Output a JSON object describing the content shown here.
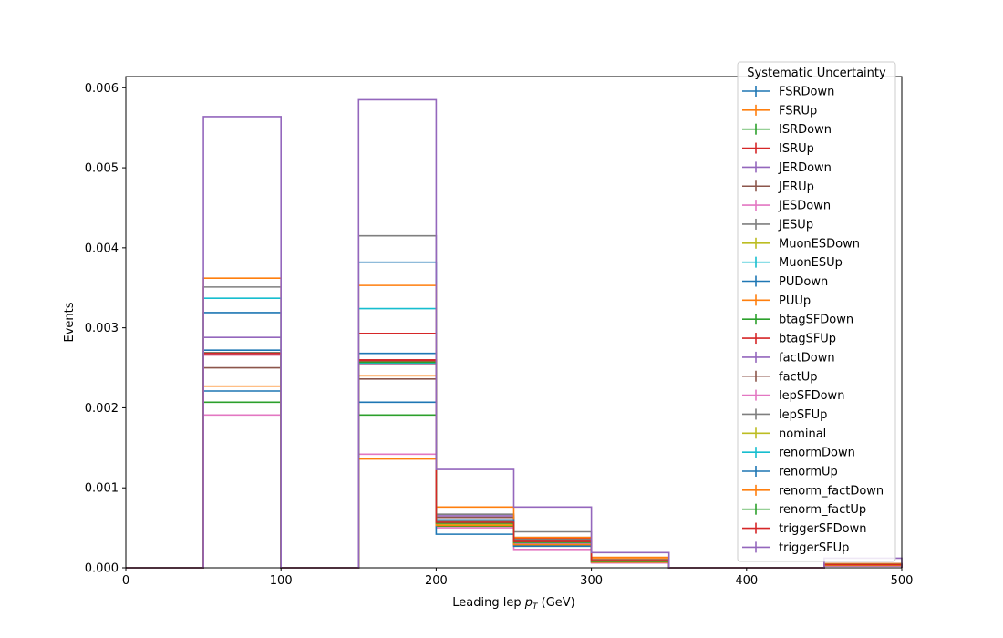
{
  "chart_data": {
    "type": "step-histogram",
    "title": "",
    "xlabel_prefix": "Leading lep ",
    "xlabel_var": "p",
    "xlabel_sub": "T",
    "xlabel_suffix": " (GeV)",
    "ylabel": "Events",
    "xlim": [
      0,
      500
    ],
    "ylim": [
      0,
      0.00614
    ],
    "xticks": [
      0,
      100,
      200,
      300,
      400,
      500
    ],
    "xtick_labels": [
      "0",
      "100",
      "200",
      "300",
      "400",
      "500"
    ],
    "yticks": [
      0,
      0.001,
      0.002,
      0.003,
      0.004,
      0.005,
      0.006
    ],
    "ytick_labels": [
      "0.000",
      "0.001",
      "0.002",
      "0.003",
      "0.004",
      "0.005",
      "0.006"
    ],
    "grid": false,
    "legend": {
      "title": "Systematic Uncertainty",
      "placement": "upper right"
    },
    "bin_edges": [
      0,
      50,
      100,
      150,
      200,
      250,
      300,
      350,
      400,
      450,
      500
    ],
    "series": [
      {
        "name": "FSRDown",
        "color": "#1f77b4",
        "values": [
          0,
          0.00272,
          0,
          0.00268,
          0.00058,
          0.00031,
          8e-05,
          0,
          0,
          3e-05
        ]
      },
      {
        "name": "FSRUp",
        "color": "#ff7f0e",
        "values": [
          0,
          0.00268,
          0,
          0.0024,
          0.00055,
          0.00036,
          0.00011,
          0,
          0,
          4e-05
        ]
      },
      {
        "name": "ISRDown",
        "color": "#2ca02c",
        "values": [
          0,
          0.00207,
          0,
          0.00191,
          0.00052,
          0.00028,
          7e-05,
          0,
          0,
          3e-05
        ]
      },
      {
        "name": "ISRUp",
        "color": "#d62728",
        "values": [
          0,
          0.00266,
          0,
          0.00293,
          0.00063,
          0.00037,
          0.0001,
          0,
          0,
          5e-05
        ]
      },
      {
        "name": "JERDown",
        "color": "#9467bd",
        "values": [
          0,
          0.00288,
          0,
          0.00258,
          0.00065,
          0.00034,
          9e-05,
          0,
          0,
          4e-05
        ]
      },
      {
        "name": "JERUp",
        "color": "#8c564b",
        "values": [
          0,
          0.0025,
          0,
          0.00236,
          0.00063,
          0.00038,
          9e-05,
          0,
          0,
          4e-05
        ]
      },
      {
        "name": "JESDown",
        "color": "#e377c2",
        "values": [
          0,
          0.00191,
          0,
          0.00142,
          0.0005,
          0.00023,
          6e-05,
          0,
          0,
          2e-05
        ]
      },
      {
        "name": "JESUp",
        "color": "#7f7f7f",
        "values": [
          0,
          0.00351,
          0,
          0.00415,
          0.00067,
          0.00045,
          0.0001,
          0,
          0,
          5e-05
        ]
      },
      {
        "name": "MuonESDown",
        "color": "#bcbd22",
        "values": [
          0,
          0.00267,
          0,
          0.00255,
          0.00054,
          0.00032,
          9e-05,
          0,
          0,
          4e-05
        ]
      },
      {
        "name": "MuonESUp",
        "color": "#17becf",
        "values": [
          0,
          0.00337,
          0,
          0.00324,
          0.0006,
          0.00035,
          9e-05,
          0,
          0,
          4e-05
        ]
      },
      {
        "name": "PUDown",
        "color": "#1f77b4",
        "values": [
          0,
          0.00319,
          0,
          0.00382,
          0.00042,
          0.0003,
          8e-05,
          0,
          0,
          3e-05
        ]
      },
      {
        "name": "PUUp",
        "color": "#ff7f0e",
        "values": [
          0,
          0.00362,
          0,
          0.00353,
          0.00076,
          0.00038,
          0.00013,
          0,
          0,
          5e-05
        ]
      },
      {
        "name": "btagSFDown",
        "color": "#2ca02c",
        "values": [
          0,
          0.00268,
          0,
          0.00256,
          0.00056,
          0.00031,
          8e-05,
          0,
          0,
          4e-05
        ]
      },
      {
        "name": "btagSFUp",
        "color": "#d62728",
        "values": [
          0,
          0.00268,
          0,
          0.0026,
          0.00057,
          0.00033,
          9e-05,
          0,
          0,
          4e-05
        ]
      },
      {
        "name": "factDown",
        "color": "#9467bd",
        "values": [
          0,
          0.00268,
          0,
          0.00257,
          0.00057,
          0.00032,
          8e-05,
          0,
          0,
          4e-05
        ]
      },
      {
        "name": "factUp",
        "color": "#8c564b",
        "values": [
          0,
          0.00267,
          0,
          0.00256,
          0.00057,
          0.00032,
          8e-05,
          0,
          0,
          4e-05
        ]
      },
      {
        "name": "lepSFDown",
        "color": "#e377c2",
        "values": [
          0,
          0.00266,
          0,
          0.00254,
          0.00056,
          0.00031,
          8e-05,
          0,
          0,
          4e-05
        ]
      },
      {
        "name": "lepSFUp",
        "color": "#7f7f7f",
        "values": [
          0,
          0.00269,
          0,
          0.00259,
          0.00058,
          0.00033,
          9e-05,
          0,
          0,
          4e-05
        ]
      },
      {
        "name": "nominal",
        "color": "#bcbd22",
        "values": [
          0,
          0.00268,
          0,
          0.00257,
          0.00057,
          0.00032,
          8e-05,
          0,
          0,
          4e-05
        ]
      },
      {
        "name": "renormDown",
        "color": "#17becf",
        "values": [
          0,
          0.00268,
          0,
          0.00256,
          0.00057,
          0.00032,
          8e-05,
          0,
          0,
          4e-05
        ]
      },
      {
        "name": "renormUp",
        "color": "#1f77b4",
        "values": [
          0,
          0.00221,
          0,
          0.00207,
          0.0006,
          0.00027,
          7e-05,
          0,
          0,
          3e-05
        ]
      },
      {
        "name": "renorm_factDown",
        "color": "#ff7f0e",
        "values": [
          0,
          0.00227,
          0,
          0.00136,
          0.00053,
          0.00029,
          7e-05,
          0,
          0,
          3e-05
        ]
      },
      {
        "name": "renorm_factUp",
        "color": "#2ca02c",
        "values": [
          0,
          0.00268,
          0,
          0.00257,
          0.00056,
          0.00032,
          8e-05,
          0,
          0,
          4e-05
        ]
      },
      {
        "name": "triggerSFDown",
        "color": "#d62728",
        "values": [
          0,
          0.00268,
          0,
          0.00259,
          0.00057,
          0.00033,
          9e-05,
          0,
          0,
          4e-05
        ]
      },
      {
        "name": "triggerSFUp",
        "color": "#9467bd",
        "values": [
          0,
          0.00564,
          0,
          0.00585,
          0.00123,
          0.00076,
          0.00019,
          0,
          0,
          0.00012
        ]
      }
    ]
  }
}
